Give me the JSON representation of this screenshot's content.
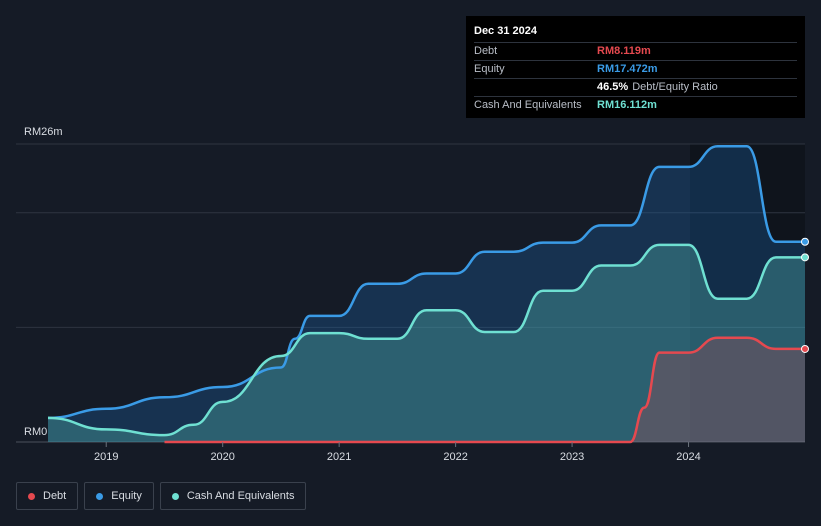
{
  "tooltip": {
    "date": "Dec 31 2024",
    "rows": [
      {
        "label": "Debt",
        "value": "RM8.119m",
        "color": "#e5494f",
        "suffix": ""
      },
      {
        "label": "Equity",
        "value": "RM17.472m",
        "color": "#3a9be6",
        "suffix": ""
      },
      {
        "label": "",
        "value": "46.5%",
        "color": "#ffffff",
        "suffix": "Debt/Equity Ratio"
      },
      {
        "label": "Cash And Equivalents",
        "value": "RM16.112m",
        "color": "#6fe0d2",
        "suffix": ""
      }
    ]
  },
  "legend": [
    {
      "label": "Debt",
      "color": "#e5494f"
    },
    {
      "label": "Equity",
      "color": "#3a9be6"
    },
    {
      "label": "Cash And Equivalents",
      "color": "#6fe0d2"
    }
  ],
  "chart_data": {
    "type": "area",
    "y_top_label": "RM26m",
    "y_zero_label": "RM0",
    "ylim": [
      0,
      26
    ],
    "xlim": [
      2018.5,
      2025.0
    ],
    "x_ticks": [
      {
        "x": 2019,
        "label": "2019"
      },
      {
        "x": 2020,
        "label": "2020"
      },
      {
        "x": 2021,
        "label": "2021"
      },
      {
        "x": 2022,
        "label": "2022"
      },
      {
        "x": 2023,
        "label": "2023"
      },
      {
        "x": 2024,
        "label": "2024"
      }
    ],
    "gridlines": [
      26,
      20,
      10
    ],
    "series": [
      {
        "name": "Equity",
        "color": "#3a9be6",
        "fill": "rgba(30,110,190,0.28)",
        "end_value": 17.472,
        "points": [
          [
            2018.5,
            2.1
          ],
          [
            2019.0,
            2.9
          ],
          [
            2019.5,
            3.9
          ],
          [
            2020.0,
            4.8
          ],
          [
            2020.5,
            6.5
          ],
          [
            2020.62,
            9.0
          ],
          [
            2020.75,
            11.0
          ],
          [
            2021.0,
            11.0
          ],
          [
            2021.25,
            13.8
          ],
          [
            2021.5,
            13.8
          ],
          [
            2021.75,
            14.7
          ],
          [
            2022.0,
            14.7
          ],
          [
            2022.25,
            16.6
          ],
          [
            2022.5,
            16.6
          ],
          [
            2022.75,
            17.4
          ],
          [
            2023.0,
            17.4
          ],
          [
            2023.25,
            18.9
          ],
          [
            2023.5,
            18.9
          ],
          [
            2023.75,
            24.0
          ],
          [
            2024.0,
            24.0
          ],
          [
            2024.25,
            25.8
          ],
          [
            2024.5,
            25.8
          ],
          [
            2024.75,
            17.47
          ],
          [
            2025.0,
            17.47
          ]
        ]
      },
      {
        "name": "Cash And Equivalents",
        "color": "#6fe0d2",
        "fill": "rgba(80,170,165,0.38)",
        "end_value": 16.112,
        "points": [
          [
            2018.5,
            2.1
          ],
          [
            2019.0,
            1.1
          ],
          [
            2019.5,
            0.6
          ],
          [
            2019.75,
            1.5
          ],
          [
            2020.0,
            3.5
          ],
          [
            2020.5,
            7.5
          ],
          [
            2020.75,
            9.5
          ],
          [
            2021.0,
            9.5
          ],
          [
            2021.25,
            9.0
          ],
          [
            2021.5,
            9.0
          ],
          [
            2021.75,
            11.5
          ],
          [
            2022.0,
            11.5
          ],
          [
            2022.25,
            9.6
          ],
          [
            2022.5,
            9.6
          ],
          [
            2022.75,
            13.2
          ],
          [
            2023.0,
            13.2
          ],
          [
            2023.25,
            15.4
          ],
          [
            2023.5,
            15.4
          ],
          [
            2023.75,
            17.2
          ],
          [
            2024.0,
            17.2
          ],
          [
            2024.25,
            12.5
          ],
          [
            2024.5,
            12.5
          ],
          [
            2024.75,
            16.11
          ],
          [
            2025.0,
            16.11
          ]
        ]
      },
      {
        "name": "Debt",
        "color": "#e5494f",
        "fill": "rgba(190,70,80,0.28)",
        "end_value": 8.119,
        "points": [
          [
            2019.5,
            0.0
          ],
          [
            2023.5,
            0.0
          ],
          [
            2023.62,
            3.0
          ],
          [
            2023.75,
            7.8
          ],
          [
            2024.0,
            7.8
          ],
          [
            2024.25,
            9.1
          ],
          [
            2024.5,
            9.1
          ],
          [
            2024.75,
            8.12
          ],
          [
            2025.0,
            8.12
          ]
        ]
      }
    ]
  }
}
